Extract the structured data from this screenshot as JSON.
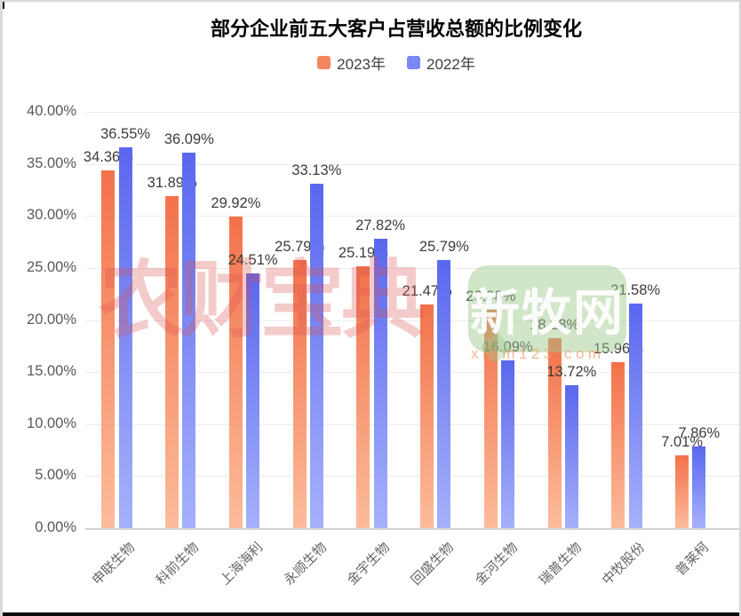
{
  "watermarks": {
    "brand1": "农财宝典",
    "brand2": "新牧网",
    "brand2_sub": "xinm123.com"
  },
  "chart_data": {
    "type": "bar",
    "title": "部分企业前五大客户占营收总额的比例变化",
    "categories": [
      "申联生物",
      "科前生物",
      "上海海利",
      "永顺生物",
      "金宇生物",
      "回盛生物",
      "金河生物",
      "瑞普生物",
      "中牧股份",
      "普莱柯"
    ],
    "series": [
      {
        "name": "2023年",
        "color_top": "#f3724a",
        "color_bottom": "#fcbc9c",
        "legend_color": "#f5875f",
        "values": [
          34.36,
          31.89,
          29.92,
          25.79,
          25.19,
          21.47,
          20.98,
          18.28,
          15.96,
          7.01
        ]
      },
      {
        "name": "2022年",
        "color_top": "#5a67ee",
        "color_bottom": "#a6b1fb",
        "legend_color": "#7b88f4",
        "values": [
          36.55,
          36.09,
          24.51,
          33.13,
          27.82,
          25.79,
          16.09,
          13.72,
          21.58,
          7.86
        ]
      }
    ],
    "ylim": [
      0,
      40
    ],
    "ytick_step": 5,
    "ytick_labels": [
      "0.00%",
      "5.00%",
      "10.00%",
      "15.00%",
      "20.00%",
      "25.00%",
      "30.00%",
      "35.00%",
      "40.00%"
    ],
    "value_label_suffix": "%",
    "grid": true,
    "legend_position": "top"
  }
}
